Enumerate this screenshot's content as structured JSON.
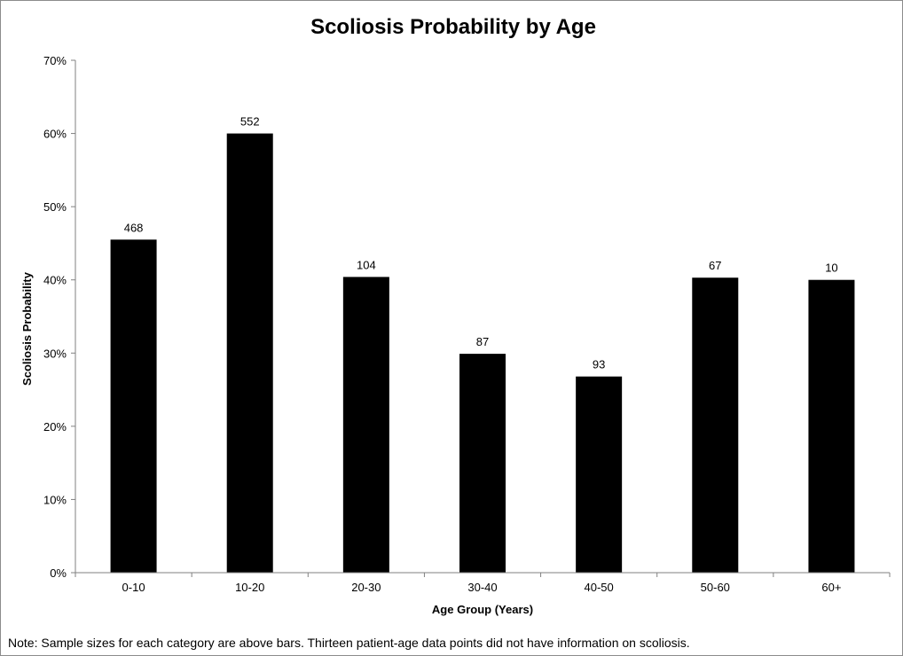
{
  "chart_data": {
    "type": "bar",
    "title": "Scoliosis Probability by Age",
    "xlabel": "Age Group (Years)",
    "ylabel": "Scoliosis Probability",
    "categories": [
      "0-10",
      "10-20",
      "20-30",
      "30-40",
      "40-50",
      "50-60",
      "60+"
    ],
    "values": [
      45.5,
      60.0,
      40.4,
      29.9,
      26.8,
      40.3,
      40.0
    ],
    "data_labels": [
      "468",
      "552",
      "104",
      "87",
      "93",
      "67",
      "10"
    ],
    "ylim": [
      0,
      70
    ],
    "yticks": [
      0,
      10,
      20,
      30,
      40,
      50,
      60,
      70
    ],
    "ytick_labels": [
      "0%",
      "10%",
      "20%",
      "30%",
      "40%",
      "50%",
      "60%",
      "70%"
    ],
    "grid": false,
    "legend": "none",
    "bar_color": "#000000"
  },
  "note": "Note: Sample sizes for each category are above bars.  Thirteen patient-age data points did not have information on scoliosis."
}
